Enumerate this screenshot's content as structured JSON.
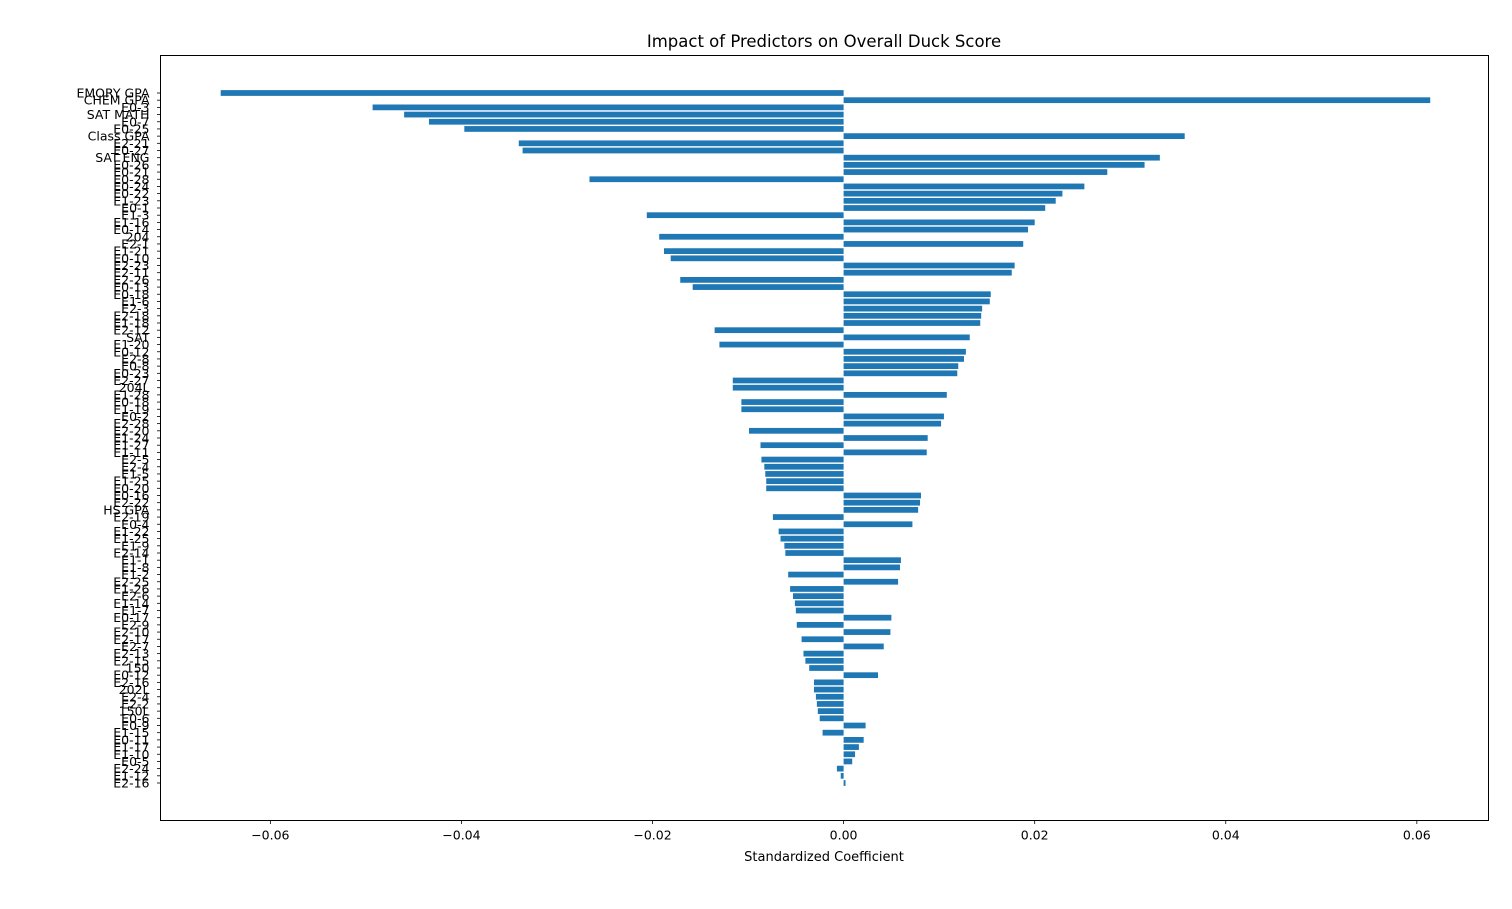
{
  "chart_data": {
    "type": "bar",
    "orientation": "horizontal",
    "title": "Impact of Predictors on Overall Duck Score",
    "xlabel": "Standardized Coefficient",
    "ylabel": "",
    "xlim": [
      -0.0715,
      0.0675
    ],
    "xticks": [
      -0.06,
      -0.04,
      -0.02,
      0.0,
      0.02,
      0.04,
      0.06
    ],
    "xtick_labels": [
      "−0.06",
      "−0.04",
      "−0.02",
      "0.00",
      "0.02",
      "0.04",
      "0.06"
    ],
    "grid": false,
    "bar_color": "#1f77b4",
    "categories": [
      "EMORY GPA",
      "CHEM GPA",
      "E0-3",
      "SAT MATH",
      "E0-7",
      "E0-25",
      "Class GPA",
      "E2-21",
      "E0-27",
      "SAT ENG",
      "E0-26",
      "E0-21",
      "E0-28",
      "E0-24",
      "E0-22",
      "E1-23",
      "E0-1",
      "E1-3",
      "E1-16",
      "E0-14",
      "204",
      "E2-1",
      "E1-21",
      "E0-10",
      "E2-23",
      "E2-11",
      "E2-26",
      "E0-13",
      "E0-18",
      "E1-6",
      "E2-3",
      "E2-18",
      "E1-18",
      "E2-12",
      "SAT",
      "E1-20",
      "E0-12",
      "E2-8",
      "E0-8",
      "E0-23",
      "E2-27",
      "204L",
      "E1-28",
      "E0-18",
      "E1-19",
      "E0-2",
      "E2-28",
      "E2-20",
      "E1-24",
      "E1-27",
      "E1-11",
      "E2-5",
      "E2-4",
      "E1-5",
      "E1-25",
      "E0-20",
      "E0-16",
      "E2-22",
      "HS GPA",
      "E2-19",
      "E0-4",
      "E1-22",
      "E1-25",
      "E1-9",
      "E2-14",
      "E1-1",
      "E1-8",
      "E1-2",
      "E2-25",
      "E1-26",
      "E2-6",
      "E1-14",
      "E1-7",
      "E0-17",
      "E2-9",
      "E2-10",
      "E2-17",
      "E2-7",
      "E2-13",
      "E2-15",
      "150",
      "E0-12",
      "E2-16",
      "202L",
      "E2-4",
      "E2-2",
      "150L",
      "E0-6",
      "E0-9",
      "E1-15",
      "E0-11",
      "E1-17",
      "E1-10",
      "E0-5",
      "E2-24",
      "E1-12",
      "E2-16"
    ],
    "values": [
      -0.0652,
      0.0614,
      -0.0493,
      -0.046,
      -0.0434,
      -0.0397,
      0.0357,
      -0.034,
      -0.0336,
      0.0331,
      0.0315,
      0.0276,
      -0.0266,
      0.0252,
      0.0229,
      0.0222,
      0.0211,
      -0.0206,
      0.02,
      0.0193,
      -0.0193,
      0.0188,
      -0.0188,
      -0.0181,
      0.0179,
      0.0176,
      -0.0171,
      -0.0158,
      0.0154,
      0.0153,
      0.0145,
      0.0144,
      0.0143,
      -0.0135,
      0.0132,
      -0.013,
      0.0128,
      0.0126,
      0.012,
      0.0119,
      -0.0116,
      -0.0116,
      0.0108,
      -0.0107,
      -0.0107,
      0.0105,
      0.0102,
      -0.0099,
      0.0088,
      -0.0087,
      0.0087,
      -0.0086,
      -0.0083,
      -0.0082,
      -0.0081,
      -0.0081,
      0.0081,
      0.008,
      0.0078,
      -0.0074,
      0.0072,
      -0.0068,
      -0.0066,
      -0.0062,
      -0.0061,
      0.006,
      0.0059,
      -0.0058,
      0.0057,
      -0.0056,
      -0.0053,
      -0.0051,
      -0.005,
      0.005,
      -0.0049,
      0.0049,
      -0.0044,
      0.0042,
      -0.0042,
      -0.004,
      -0.0036,
      0.0036,
      -0.0031,
      -0.0031,
      -0.0029,
      -0.0028,
      -0.0027,
      -0.0025,
      0.0023,
      -0.0022,
      0.0021,
      0.0016,
      0.0012,
      0.0009,
      -0.0007,
      -0.0003,
      0.0002
    ]
  }
}
